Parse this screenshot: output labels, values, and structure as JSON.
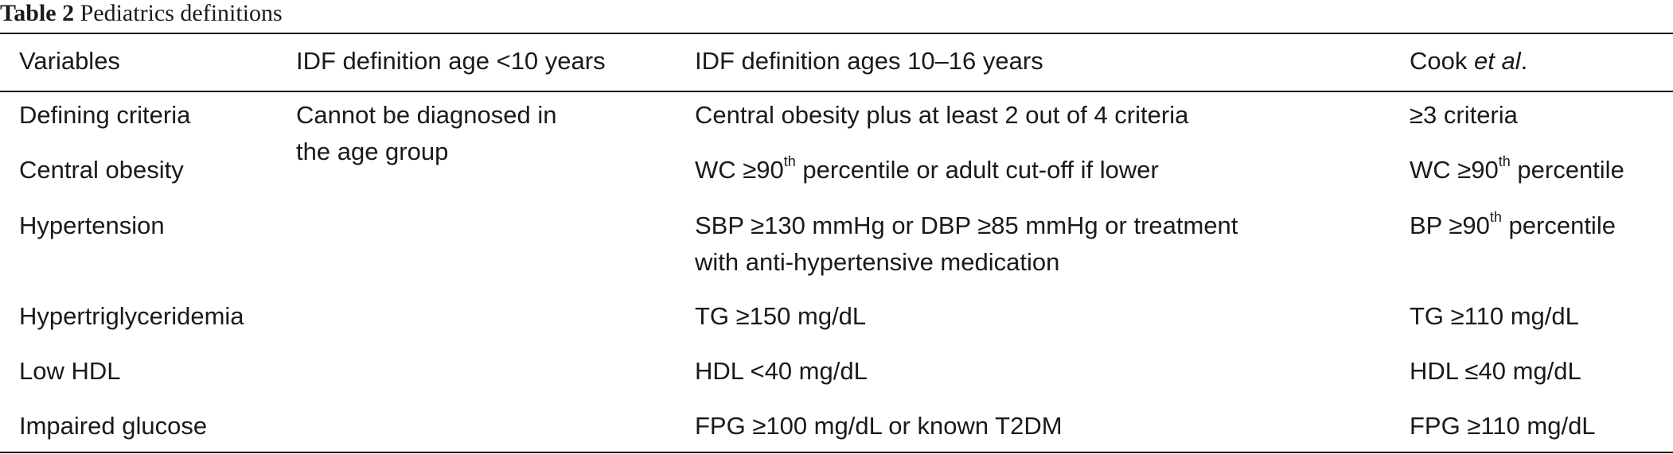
{
  "caption": {
    "label": "Table 2",
    "text": "Pediatrics definitions"
  },
  "table": {
    "headers": {
      "variables": "Variables",
      "idf_under10": "IDF definition age <10 years",
      "idf_10_16": "IDF definition ages 10–16 years",
      "cook_name": "Cook ",
      "cook_etal": "et al",
      "cook_period": "."
    },
    "under10_note_line1": "Cannot be diagnosed in",
    "under10_note_line2": "the age group",
    "rows": [
      {
        "variable": "Defining criteria",
        "idf": "Central obesity plus at least 2 out of 4 criteria",
        "cook": "≥3 criteria"
      },
      {
        "variable": "Central obesity",
        "idf_pre": "WC ≥90",
        "idf_sup": "th",
        "idf_post": " percentile or adult cut-off if lower",
        "cook_pre": "WC ≥90",
        "cook_sup": "th",
        "cook_post": " percentile"
      },
      {
        "variable": "Hypertension",
        "idf_line1": "SBP ≥130 mmHg or DBP ≥85 mmHg or treatment",
        "idf_line2": "with anti-hypertensive medication",
        "cook_pre": "BP ≥90",
        "cook_sup": "th",
        "cook_post": " percentile"
      },
      {
        "variable": "Hypertriglyceridemia",
        "idf": "TG ≥150 mg/dL",
        "cook": "TG ≥110 mg/dL"
      },
      {
        "variable": "Low HDL",
        "idf": "HDL <40 mg/dL",
        "cook": "HDL ≤40 mg/dL"
      },
      {
        "variable": "Impaired glucose",
        "idf": "FPG ≥100 mg/dL or known T2DM",
        "cook": "FPG ≥110 mg/dL"
      }
    ]
  }
}
